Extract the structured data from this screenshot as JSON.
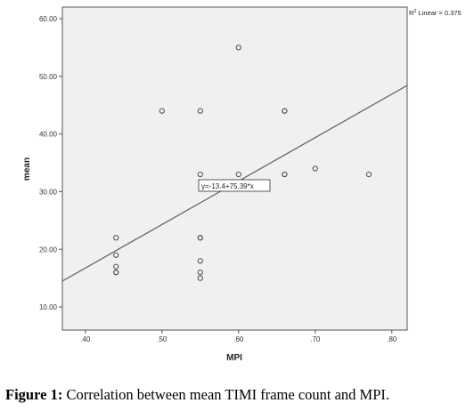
{
  "chart_data": {
    "type": "scatter",
    "xlabel": "MPI",
    "ylabel": "mean",
    "xlim": [
      0.37,
      0.82
    ],
    "ylim": [
      6.0,
      62.0
    ],
    "x_ticks": [
      0.4,
      0.5,
      0.6,
      0.7,
      0.8
    ],
    "x_tick_labels": [
      ".40",
      ".50",
      ".60",
      ".70",
      ".80"
    ],
    "y_ticks": [
      10,
      20,
      30,
      40,
      50,
      60
    ],
    "y_tick_labels": [
      "10.00",
      "20.00",
      "30.00",
      "40.00",
      "50.00",
      "60.00"
    ],
    "points": [
      {
        "x": 0.44,
        "y": 22
      },
      {
        "x": 0.44,
        "y": 19
      },
      {
        "x": 0.44,
        "y": 17
      },
      {
        "x": 0.44,
        "y": 16
      },
      {
        "x": 0.44,
        "y": 16
      },
      {
        "x": 0.5,
        "y": 44
      },
      {
        "x": 0.55,
        "y": 44
      },
      {
        "x": 0.55,
        "y": 33
      },
      {
        "x": 0.55,
        "y": 22
      },
      {
        "x": 0.55,
        "y": 22
      },
      {
        "x": 0.55,
        "y": 18
      },
      {
        "x": 0.55,
        "y": 16
      },
      {
        "x": 0.55,
        "y": 15
      },
      {
        "x": 0.6,
        "y": 55
      },
      {
        "x": 0.6,
        "y": 33
      },
      {
        "x": 0.66,
        "y": 44
      },
      {
        "x": 0.66,
        "y": 44
      },
      {
        "x": 0.66,
        "y": 33
      },
      {
        "x": 0.66,
        "y": 33
      },
      {
        "x": 0.7,
        "y": 34
      },
      {
        "x": 0.77,
        "y": 33
      }
    ],
    "fit_line": {
      "intercept": -13.4,
      "slope": 75.39
    },
    "fit_label": "y=-13.4+75.39*x",
    "r2_label_prefix": "R",
    "r2_label_sup": "2",
    "r2_label_suffix": " Linear = 0.375",
    "grid": false,
    "colors": {
      "plot_background": "#f0f0f0",
      "marker": "#555555",
      "fit_line": "#666666"
    }
  },
  "caption": {
    "figure_label": "Figure 1:",
    "text": " Correlation between mean TIMI frame count and MPI."
  }
}
